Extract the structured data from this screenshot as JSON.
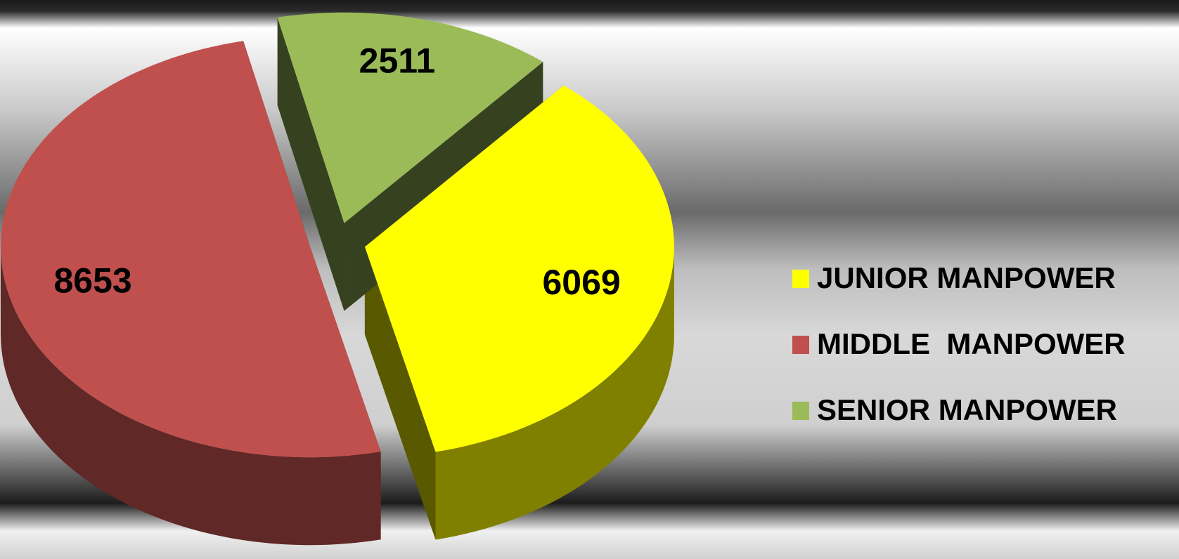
{
  "chart_data": {
    "type": "pie",
    "categories": [
      "JUNIOR MANPOWER",
      "MIDDLE  MANPOWER",
      "SENIOR MANPOWER"
    ],
    "values": [
      6069,
      8653,
      2511
    ],
    "colors": [
      "#ffff00",
      "#c0504d",
      "#9bbb59"
    ],
    "legend": "right"
  }
}
